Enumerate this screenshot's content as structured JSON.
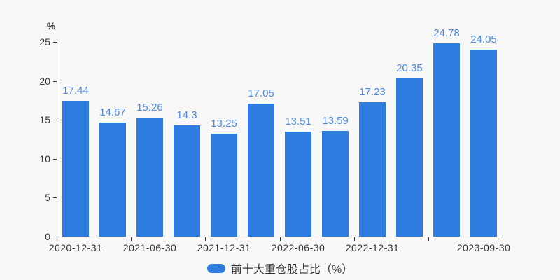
{
  "chart_data": {
    "type": "bar",
    "title": "",
    "series": [
      {
        "name": "前十大重仓股占比（%）",
        "values": [
          17.44,
          14.67,
          15.26,
          14.3,
          13.25,
          17.05,
          13.51,
          13.59,
          17.23,
          20.35,
          24.78,
          24.05
        ]
      }
    ],
    "x_tick_labels": [
      {
        "text": "2020-12-31",
        "slot": 0
      },
      {
        "text": "2021-06-30",
        "slot": 2
      },
      {
        "text": "2021-12-31",
        "slot": 4
      },
      {
        "text": "2022-06-30",
        "slot": 6
      },
      {
        "text": "2022-12-31",
        "slot": 8
      },
      {
        "text": "2023-09-30",
        "slot": 11
      }
    ],
    "x_axis_tick_every_slots": 2,
    "y_axis": {
      "unit": "%",
      "ticks": [
        0,
        5,
        10,
        15,
        20,
        25
      ],
      "lim": [
        0,
        25
      ]
    },
    "legend": {
      "position": "bottom",
      "entries": [
        "前十大重仓股占比（%）"
      ]
    },
    "grid": false,
    "colors": {
      "bar": "#2e7ce0",
      "value_label": "#5189e3",
      "axis": "#333333",
      "text": "#333333",
      "background": "#f8f8f8"
    }
  }
}
